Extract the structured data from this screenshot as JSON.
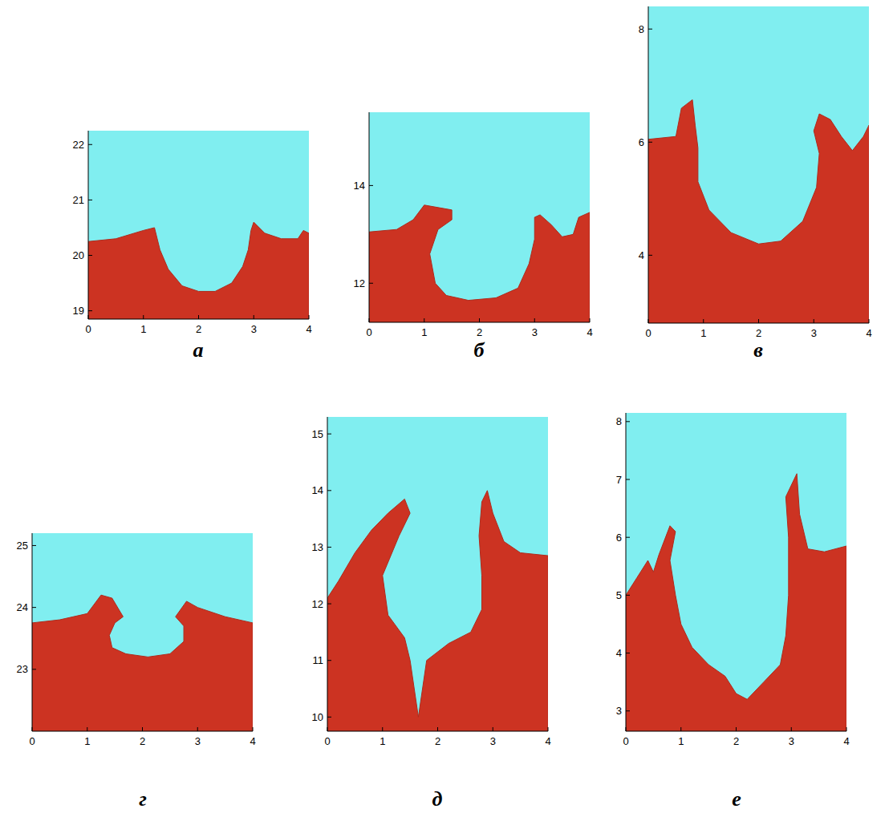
{
  "chart_data": [
    {
      "type": "area",
      "title": "а",
      "xlim": [
        0,
        4
      ],
      "xticks": [
        0,
        1,
        2,
        3,
        4
      ],
      "ylim": [
        18.85,
        22.25
      ],
      "yticks": [
        19,
        20,
        21,
        22
      ],
      "x": [
        0,
        0.5,
        1.0,
        1.2,
        1.3,
        1.45,
        1.7,
        2.0,
        2.3,
        2.6,
        2.8,
        2.9,
        2.95,
        3.0,
        3.2,
        3.5,
        3.8,
        3.9,
        4
      ],
      "series": [
        {
          "color": "#cc3322",
          "values": [
            20.25,
            20.3,
            20.45,
            20.5,
            20.1,
            19.75,
            19.45,
            19.35,
            19.35,
            19.5,
            19.8,
            20.1,
            20.45,
            20.6,
            20.4,
            20.3,
            20.3,
            20.45,
            20.4
          ]
        }
      ]
    },
    {
      "type": "area",
      "title": "б",
      "xlim": [
        0,
        4
      ],
      "xticks": [
        0,
        1,
        2,
        3,
        4
      ],
      "ylim": [
        11.2,
        15.5
      ],
      "yticks": [
        12,
        14
      ],
      "x": [
        0,
        0.5,
        0.8,
        1.0,
        1.5,
        1.5,
        1.25,
        1.1,
        1.2,
        1.4,
        1.8,
        2.3,
        2.7,
        2.9,
        3.0,
        3.0,
        3.1,
        3.3,
        3.5,
        3.7,
        3.8,
        4
      ],
      "series": [
        {
          "color": "#cc3322",
          "values": [
            13.05,
            13.1,
            13.3,
            13.6,
            13.5,
            13.3,
            13.1,
            12.6,
            12.0,
            11.75,
            11.65,
            11.7,
            11.9,
            12.4,
            12.9,
            13.35,
            13.4,
            13.2,
            12.95,
            13.0,
            13.35,
            13.45
          ]
        }
      ]
    },
    {
      "type": "area",
      "title": "в",
      "xlim": [
        0,
        4
      ],
      "xticks": [
        0,
        1,
        2,
        3,
        4
      ],
      "ylim": [
        2.8,
        8.4
      ],
      "yticks": [
        4,
        6,
        8
      ],
      "x": [
        0,
        0.5,
        0.6,
        0.8,
        0.85,
        0.9,
        0.9,
        1.1,
        1.5,
        2.0,
        2.4,
        2.8,
        3.05,
        3.1,
        3.0,
        3.1,
        3.3,
        3.5,
        3.7,
        3.9,
        4
      ],
      "series": [
        {
          "color": "#cc3322",
          "values": [
            6.05,
            6.1,
            6.6,
            6.75,
            6.3,
            5.9,
            5.3,
            4.8,
            4.4,
            4.2,
            4.25,
            4.6,
            5.2,
            5.8,
            6.2,
            6.5,
            6.4,
            6.1,
            5.85,
            6.1,
            6.3
          ]
        }
      ]
    },
    {
      "type": "area",
      "title": "г",
      "xlim": [
        0,
        4
      ],
      "xticks": [
        0,
        1,
        2,
        3,
        4
      ],
      "ylim": [
        22.0,
        25.2
      ],
      "yticks": [
        23,
        24,
        25
      ],
      "x": [
        0,
        0.5,
        1.0,
        1.25,
        1.45,
        1.65,
        1.5,
        1.4,
        1.45,
        1.7,
        2.1,
        2.5,
        2.75,
        2.75,
        2.6,
        2.8,
        3.0,
        3.5,
        4
      ],
      "series": [
        {
          "color": "#cc3322",
          "values": [
            23.75,
            23.8,
            23.9,
            24.2,
            24.15,
            23.85,
            23.75,
            23.55,
            23.35,
            23.25,
            23.2,
            23.25,
            23.45,
            23.7,
            23.85,
            24.1,
            24.0,
            23.85,
            23.75
          ]
        }
      ]
    },
    {
      "type": "area",
      "title": "д",
      "xlim": [
        0,
        4
      ],
      "xticks": [
        0,
        1,
        2,
        3,
        4
      ],
      "ylim": [
        9.75,
        15.3
      ],
      "yticks": [
        10,
        11,
        12,
        13,
        14,
        15
      ],
      "x": [
        0,
        0.2,
        0.5,
        0.8,
        1.1,
        1.4,
        1.5,
        1.3,
        1.0,
        1.1,
        1.4,
        1.5,
        1.65,
        1.8,
        2.2,
        2.6,
        2.8,
        2.8,
        2.75,
        2.8,
        2.9,
        3.0,
        3.2,
        3.5,
        4
      ],
      "series": [
        {
          "color": "#cc3322",
          "values": [
            12.1,
            12.4,
            12.9,
            13.3,
            13.6,
            13.85,
            13.6,
            13.2,
            12.5,
            11.8,
            11.4,
            11.0,
            10.0,
            11.0,
            11.3,
            11.5,
            11.9,
            12.5,
            13.2,
            13.8,
            14.0,
            13.6,
            13.1,
            12.9,
            12.85
          ]
        }
      ]
    },
    {
      "type": "area",
      "title": "е",
      "xlim": [
        0,
        4
      ],
      "xticks": [
        0,
        1,
        2,
        3,
        4
      ],
      "ylim": [
        2.65,
        8.15
      ],
      "yticks": [
        3,
        4,
        5,
        6,
        7,
        8
      ],
      "x": [
        0,
        0.2,
        0.4,
        0.5,
        0.6,
        0.8,
        0.9,
        0.8,
        0.9,
        1.0,
        1.2,
        1.5,
        1.8,
        2.0,
        2.2,
        2.5,
        2.8,
        2.9,
        2.95,
        2.95,
        2.9,
        3.1,
        3.15,
        3.3,
        3.6,
        4
      ],
      "series": [
        {
          "color": "#cc3322",
          "values": [
            5.0,
            5.3,
            5.6,
            5.4,
            5.7,
            6.2,
            6.1,
            5.6,
            5.0,
            4.5,
            4.1,
            3.8,
            3.6,
            3.3,
            3.2,
            3.5,
            3.8,
            4.3,
            5.0,
            6.0,
            6.7,
            7.1,
            6.4,
            5.8,
            5.75,
            5.85
          ]
        }
      ]
    }
  ]
}
